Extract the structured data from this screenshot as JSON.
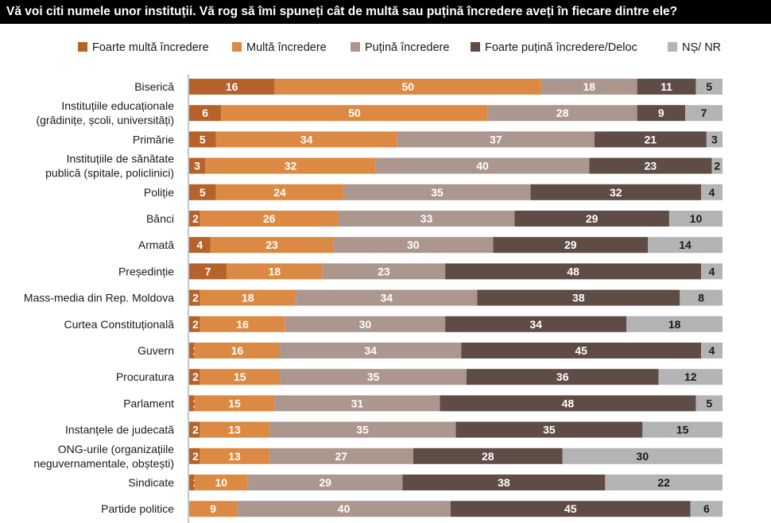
{
  "title": "Vă voi citi numele unor instituții. Vă rog să îmi spuneți cât de multă sau puțină încredere aveți în fiecare dintre ele?",
  "colors": {
    "foarte_multa": "#b5632b",
    "multa": "#dc8a43",
    "putina": "#ab978e",
    "foarte_putina": "#5f4d45",
    "ns_nr": "#b4b4b4"
  },
  "chart_data": {
    "type": "bar",
    "orientation": "horizontal",
    "stacked": true,
    "title": "Vă voi citi numele unor instituții. Vă rog să îmi spuneți cât de multă sau puțină încredere aveți în fiecare dintre ele?",
    "xlabel": "",
    "ylabel": "",
    "xlim": [
      0,
      100
    ],
    "grid": false,
    "legend_position": "top",
    "categories": [
      [
        "Biserică"
      ],
      [
        "Instituțiile educaționale",
        "(grădinițe, școli, universități)"
      ],
      [
        "Primărie"
      ],
      [
        "Instituțiile de sănătate",
        "publică (spitale, policlinici)"
      ],
      [
        "Poliție"
      ],
      [
        "Bănci"
      ],
      [
        "Armată"
      ],
      [
        "Președinție"
      ],
      [
        "Mass-media din Rep. Moldova"
      ],
      [
        "Curtea Constituțională"
      ],
      [
        "Guvern"
      ],
      [
        "Procuratura"
      ],
      [
        "Parlament"
      ],
      [
        "Instanțele de judecată"
      ],
      [
        "ONG-urile (organizațiile",
        "neguvernamentale, obștești)"
      ],
      [
        "Sindicate"
      ],
      [
        "Partide politice"
      ]
    ],
    "series": [
      {
        "name": "Foarte multă încredere",
        "color": "#b5632b",
        "values": [
          16,
          6,
          5,
          3,
          5,
          2,
          4,
          7,
          2,
          2,
          1,
          2,
          1,
          2,
          2,
          1,
          0
        ]
      },
      {
        "name": "Multă încredere",
        "color": "#dc8a43",
        "values": [
          50,
          50,
          34,
          32,
          24,
          26,
          23,
          18,
          18,
          16,
          16,
          15,
          15,
          13,
          13,
          10,
          9
        ]
      },
      {
        "name": "Puțină încredere",
        "color": "#ab978e",
        "values": [
          18,
          28,
          37,
          40,
          35,
          33,
          30,
          23,
          34,
          30,
          34,
          35,
          31,
          35,
          27,
          29,
          40
        ]
      },
      {
        "name": "Foarte puțină încredere/Deloc",
        "color": "#5f4d45",
        "values": [
          11,
          9,
          21,
          23,
          32,
          29,
          29,
          48,
          38,
          34,
          45,
          36,
          48,
          35,
          28,
          38,
          45
        ]
      },
      {
        "name": "NȘ/ NR",
        "color": "#b4b4b4",
        "values": [
          5,
          7,
          3,
          2,
          4,
          10,
          14,
          4,
          8,
          18,
          4,
          12,
          5,
          15,
          30,
          22,
          6
        ]
      }
    ]
  }
}
